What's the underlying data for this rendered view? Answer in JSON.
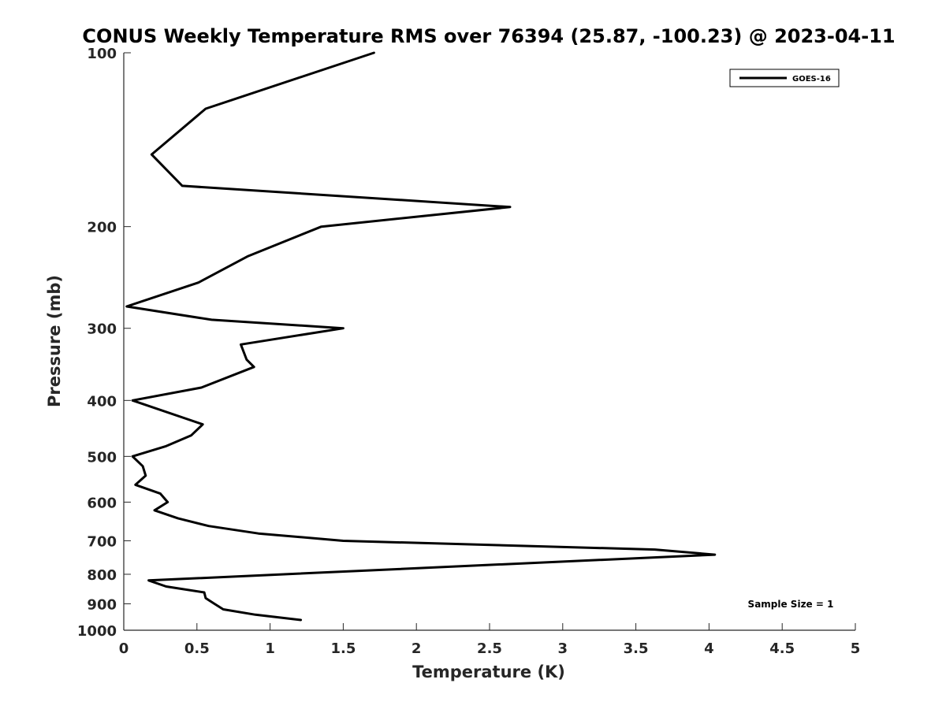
{
  "chart_data": {
    "type": "line",
    "title": "CONUS Weekly Temperature RMS over 76394 (25.87, -100.23) @ 2023-04-11",
    "xlabel": "Temperature (K)",
    "ylabel": "Pressure (mb)",
    "xlim": [
      0,
      5
    ],
    "ylim": [
      100,
      1000
    ],
    "y_scale": "log",
    "y_reversed": true,
    "x_ticks": [
      0,
      0.5,
      1,
      1.5,
      2,
      2.5,
      3,
      3.5,
      4,
      4.5,
      5
    ],
    "x_tick_labels": [
      "0",
      "0.5",
      "1",
      "1.5",
      "2",
      "2.5",
      "3",
      "3.5",
      "4",
      "4.5",
      "5"
    ],
    "y_ticks": [
      100,
      200,
      300,
      400,
      500,
      600,
      700,
      800,
      900,
      1000
    ],
    "y_tick_labels": [
      "100",
      "200",
      "300",
      "400",
      "500",
      "600",
      "700",
      "800",
      "900",
      "1000"
    ],
    "grid": false,
    "legend_position": "top-right",
    "annotation": "Sample Size = 1",
    "series": [
      {
        "name": "GOES-16",
        "color": "#000000",
        "points": [
          [
            1.71,
            100
          ],
          [
            0.56,
            125
          ],
          [
            0.19,
            150
          ],
          [
            0.4,
            170
          ],
          [
            2.64,
            185
          ],
          [
            1.35,
            200
          ],
          [
            0.85,
            225
          ],
          [
            0.51,
            250
          ],
          [
            0.02,
            275
          ],
          [
            0.6,
            290
          ],
          [
            1.5,
            300
          ],
          [
            0.8,
            320
          ],
          [
            0.84,
            340
          ],
          [
            0.89,
            350
          ],
          [
            0.53,
            380
          ],
          [
            0.06,
            400
          ],
          [
            0.54,
            440
          ],
          [
            0.46,
            460
          ],
          [
            0.29,
            480
          ],
          [
            0.06,
            500
          ],
          [
            0.13,
            520
          ],
          [
            0.15,
            540
          ],
          [
            0.08,
            560
          ],
          [
            0.25,
            580
          ],
          [
            0.3,
            600
          ],
          [
            0.21,
            620
          ],
          [
            0.37,
            640
          ],
          [
            0.58,
            660
          ],
          [
            0.92,
            680
          ],
          [
            1.5,
            700
          ],
          [
            3.63,
            725
          ],
          [
            4.04,
            740
          ],
          [
            0.17,
            820
          ],
          [
            0.29,
            840
          ],
          [
            0.55,
            860
          ],
          [
            0.56,
            880
          ],
          [
            0.62,
            900
          ],
          [
            0.68,
            920
          ],
          [
            0.9,
            940
          ],
          [
            1.21,
            960
          ]
        ]
      }
    ]
  }
}
